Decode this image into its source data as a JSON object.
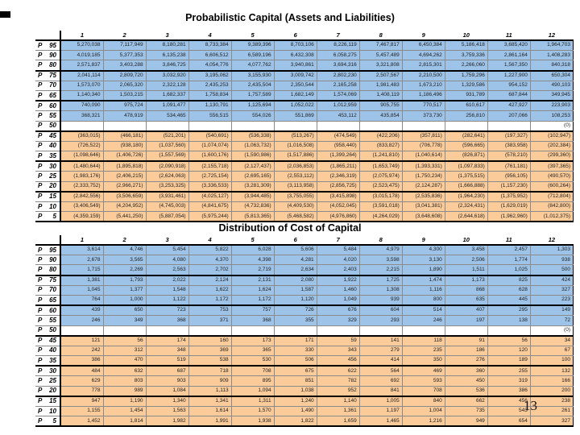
{
  "page": {
    "number": "13"
  },
  "colors": {
    "band_blue": "#9DC3E8",
    "band_orange": "#FBCB99",
    "band_none": "#FFFFFF",
    "grid_line": "#8a8a8a",
    "group_line": "#000000"
  },
  "tables": [
    {
      "title": "Probabilistic Capital (Assets and Liabilities)",
      "columns": [
        "1",
        "2",
        "3",
        "4",
        "5",
        "6",
        "7",
        "8",
        "9",
        "10",
        "11",
        "12"
      ],
      "rows": [
        {
          "label": "P 95",
          "band": "blue",
          "values": [
            "5,270,038",
            "7,117,949",
            "8,180,281",
            "8,733,384",
            "9,389,396",
            "8,703,106",
            "8,226,119",
            "7,467,817",
            "6,450,384",
            "5,186,418",
            "3,685,420",
            "1,964,703"
          ]
        },
        {
          "label": "P 90",
          "band": "blue",
          "values": [
            "4,019,185",
            "5,377,353",
            "6,135,238",
            "6,606,512",
            "6,589,196",
            "6,432,308",
            "6,058,275",
            "5,457,489",
            "4,694,262",
            "3,759,336",
            "2,861,164",
            "1,408,283"
          ]
        },
        {
          "label": "P 80",
          "band": "blue",
          "values": [
            "2,571,837",
            "3,403,288",
            "3,846,725",
            "4,054,776",
            "4,077,762",
            "3,940,861",
            "3,694,316",
            "3,321,808",
            "2,815,301",
            "2,266,060",
            "1,567,350",
            "840,318"
          ]
        },
        {
          "label": "P 75",
          "band": "blue",
          "values": [
            "2,041,114",
            "2,809,720",
            "3,032,920",
            "3,195,062",
            "3,155,930",
            "3,009,742",
            "2,802,230",
            "2,507,567",
            "2,210,500",
            "1,759,296",
            "1,227,900",
            "650,304"
          ]
        },
        {
          "label": "P 70",
          "band": "blue",
          "values": [
            "1,573,070",
            "2,065,320",
            "2,322,128",
            "2,435,253",
            "2,435,504",
            "2,350,544",
            "2,165,258",
            "1,981,483",
            "1,673,210",
            "1,329,586",
            "954,152",
            "490,103"
          ]
        },
        {
          "label": "P 65",
          "band": "blue",
          "values": [
            "1,140,340",
            "1,503,215",
            "1,682,337",
            "1,758,834",
            "1,757,589",
            "1,682,149",
            "1,574,069",
            "1,408,119",
            "1,186,496",
            "931,789",
            "687,844",
            "349,945"
          ]
        },
        {
          "label": "P 60",
          "band": "blue",
          "values": [
            "740,090",
            "975,724",
            "1,091,477",
            "1,130,791",
            "1,125,694",
            "1,052,022",
            "1,012,959",
            "905,755",
            "770,517",
            "610,617",
            "427,927",
            "223,903"
          ]
        },
        {
          "label": "P 55",
          "band": "blue",
          "values": [
            "368,321",
            "478,919",
            "534,465",
            "556,515",
            "554,026",
            "551,869",
            "453,112",
            "435,854",
            "373,730",
            "256,810",
            "207,066",
            "108,253"
          ]
        },
        {
          "label": "P 50",
          "band": "none",
          "values": [
            "",
            "",
            "",
            "",
            "",
            "",
            "",
            "",
            "",
            "",
            "",
            "(0)"
          ]
        },
        {
          "label": "P 45",
          "band": "orange",
          "values": [
            "(363,015)",
            "(466,181)",
            "(521,201)",
            "(540,691)",
            "(536,338)",
            "(513,267)",
            "(474,549)",
            "(422,206)",
            "(357,811)",
            "(282,641)",
            "(197,327)",
            "(102,947)"
          ]
        },
        {
          "label": "P 40",
          "band": "orange",
          "values": [
            "(726,522)",
            "(938,180)",
            "(1,037,560)",
            "(1,074,074)",
            "(1,063,732)",
            "(1,016,508)",
            "(958,440)",
            "(833,827)",
            "(706,778)",
            "(596,665)",
            "(383,958)",
            "(202,384)"
          ]
        },
        {
          "label": "P 35",
          "band": "orange",
          "values": [
            "(1,098,646)",
            "(1,406,726)",
            "(1,557,569)",
            "(1,600,176)",
            "(1,590,986)",
            "(1,517,886)",
            "(1,399,264)",
            "(1,241,810)",
            "(1,040,614)",
            "(826,871)",
            "(578,210)",
            "(299,360)"
          ]
        },
        {
          "label": "P 30",
          "band": "orange",
          "values": [
            "(1,480,644)",
            "(1,895,818)",
            "(2,090,918)",
            "(2,155,718)",
            "(2,127,437)",
            "(2,036,853)",
            "(1,865,211)",
            "(1,653,749)",
            "(1,393,331)",
            "(1,097,833)",
            "(761,181)",
            "(397,365)"
          ]
        },
        {
          "label": "P 25",
          "band": "orange",
          "values": [
            "(1,983,176)",
            "(2,406,215)",
            "(2,624,063)",
            "(2,725,154)",
            "(2,695,165)",
            "(2,553,112)",
            "(2,346,319)",
            "(2,075,974)",
            "(1,750,234)",
            "(1,375,515)",
            "(956,105)",
            "(490,570)"
          ]
        },
        {
          "label": "P 20",
          "band": "orange",
          "values": [
            "(2,333,752)",
            "(2,966,271)",
            "(3,253,325)",
            "(3,336,533)",
            "(3,281,309)",
            "(3,113,958)",
            "(2,856,725)",
            "(2,523,475)",
            "(2,124,287)",
            "(1,666,888)",
            "(1,157,230)",
            "(600,264)"
          ]
        },
        {
          "label": "P 15",
          "band": "orange",
          "values": [
            "(2,842,556)",
            "(3,506,659)",
            "(3,931,461)",
            "(4,025,127)",
            "(3,944,485)",
            "(3,755,055)",
            "(3,415,898)",
            "(3,015,178)",
            "(2,535,836)",
            "(1,964,230)",
            "(1,375,952)",
            "(712,804)"
          ]
        },
        {
          "label": "P 10",
          "band": "orange",
          "values": [
            "(3,406,549)",
            "(4,204,952)",
            "(4,745,003)",
            "(4,841,675)",
            "(4,732,836)",
            "(4,409,530)",
            "(4,052,045)",
            "(3,591,018)",
            "(3,041,381)",
            "(2,324,431)",
            "(1,629,019)",
            "(842,800)"
          ]
        },
        {
          "label": "P 5",
          "band": "orange",
          "values": [
            "(4,359,159)",
            "(5,441,250)",
            "(5,887,054)",
            "(5,975,244)",
            "(5,813,365)",
            "(5,468,582)",
            "(4,976,860)",
            "(4,264,029)",
            "(3,648,608)",
            "(2,644,618)",
            "(1,962,960)",
            "(1,012,375)"
          ]
        }
      ]
    },
    {
      "title": "Distribution of Cost of Capital",
      "columns": [
        "1",
        "2",
        "3",
        "4",
        "5",
        "6",
        "7",
        "8",
        "9",
        "10",
        "11",
        "12"
      ],
      "rows": [
        {
          "label": "P 95",
          "band": "blue",
          "values": [
            "3,614",
            "4,746",
            "5,454",
            "5,822",
            "6,028",
            "5,606",
            "5,484",
            "4,979",
            "4,300",
            "3,458",
            "2,457",
            "1,303"
          ]
        },
        {
          "label": "P 90",
          "band": "blue",
          "values": [
            "2,678",
            "3,565",
            "4,080",
            "4,370",
            "4,398",
            "4,281",
            "4,020",
            "3,598",
            "3,130",
            "2,506",
            "1,774",
            "938"
          ]
        },
        {
          "label": "P 80",
          "band": "blue",
          "values": [
            "1,715",
            "2,269",
            "2,563",
            "2,702",
            "2,719",
            "2,634",
            "2,403",
            "2,215",
            "1,890",
            "1,511",
            "1,025",
            "500"
          ]
        },
        {
          "label": "P 75",
          "band": "blue",
          "values": [
            "1,381",
            "1,793",
            "2,022",
            "2,124",
            "2,131",
            "2,080",
            "1,922",
            "1,725",
            "1,474",
            "1,173",
            "825",
            "424"
          ]
        },
        {
          "label": "P 70",
          "band": "blue",
          "values": [
            "1,045",
            "1,377",
            "1,548",
            "1,622",
            "1,624",
            "1,587",
            "1,460",
            "1,308",
            "1,116",
            "868",
            "628",
            "327"
          ]
        },
        {
          "label": "P 65",
          "band": "blue",
          "values": [
            "764",
            "1,000",
            "1,122",
            "1,172",
            "1,172",
            "1,120",
            "1,049",
            "939",
            "800",
            "635",
            "445",
            "223"
          ]
        },
        {
          "label": "P 60",
          "band": "blue",
          "values": [
            "439",
            "650",
            "723",
            "753",
            "757",
            "726",
            "676",
            "604",
            "514",
            "407",
            "295",
            "149"
          ]
        },
        {
          "label": "P 55",
          "band": "blue",
          "values": [
            "246",
            "349",
            "368",
            "371",
            "368",
            "355",
            "329",
            "293",
            "246",
            "197",
            "138",
            "72"
          ]
        },
        {
          "label": "P 50",
          "band": "none",
          "values": [
            "",
            "",
            "",
            "",
            "",
            "",
            "",
            "",
            "",
            "",
            "",
            "(0)"
          ]
        },
        {
          "label": "P 45",
          "band": "orange",
          "values": [
            "121",
            "56",
            "174",
            "160",
            "173",
            "171",
            "59",
            "141",
            "118",
            "91",
            "56",
            "34"
          ]
        },
        {
          "label": "P 40",
          "band": "orange",
          "values": [
            "242",
            "312",
            "348",
            "369",
            "365",
            "330",
            "343",
            "279",
            "235",
            "186",
            "120",
            "67"
          ]
        },
        {
          "label": "P 35",
          "band": "orange",
          "values": [
            "386",
            "470",
            "519",
            "538",
            "530",
            "506",
            "456",
            "414",
            "350",
            "276",
            "189",
            "100"
          ]
        },
        {
          "label": "P 30",
          "band": "orange",
          "values": [
            "484",
            "632",
            "687",
            "718",
            "708",
            "675",
            "622",
            "564",
            "469",
            "360",
            "255",
            "132"
          ]
        },
        {
          "label": "P 25",
          "band": "orange",
          "values": [
            "629",
            "803",
            "903",
            "909",
            "895",
            "851",
            "782",
            "692",
            "593",
            "450",
            "319",
            "166"
          ]
        },
        {
          "label": "P 20",
          "band": "orange",
          "values": [
            "778",
            "989",
            "1,084",
            "1,113",
            "1,094",
            "1,038",
            "952",
            "841",
            "708",
            "536",
            "386",
            "200"
          ]
        },
        {
          "label": "P 15",
          "band": "orange",
          "values": [
            "947",
            "1,190",
            "1,340",
            "1,341",
            "1,311",
            "1,240",
            "1,140",
            "1,005",
            "840",
            "662",
            "456",
            "238"
          ]
        },
        {
          "label": "P 10",
          "band": "orange",
          "values": [
            "1,155",
            "1,454",
            "1,563",
            "1,614",
            "1,570",
            "1,490",
            "1,361",
            "1,197",
            "1,004",
            "735",
            "543",
            "261"
          ]
        },
        {
          "label": "P 5",
          "band": "orange",
          "values": [
            "1,452",
            "1,814",
            "1,982",
            "1,991",
            "1,938",
            "1,822",
            "1,659",
            "1,465",
            "1,216",
            "949",
            "654",
            "327"
          ]
        }
      ]
    }
  ]
}
